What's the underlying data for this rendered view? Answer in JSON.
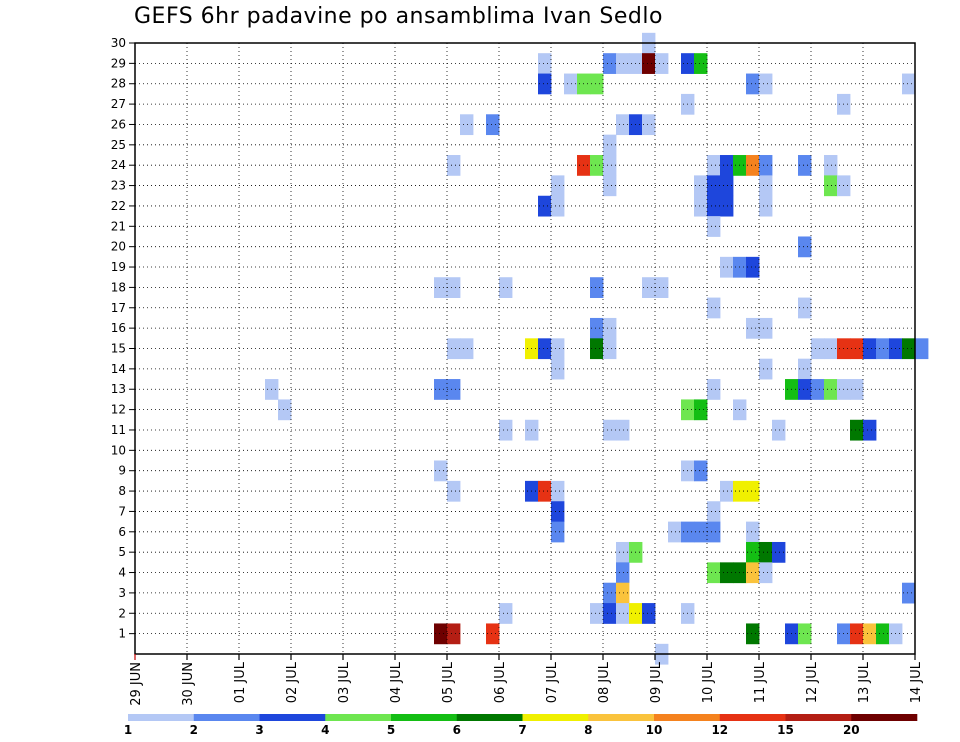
{
  "chart_data": {
    "type": "heatmap",
    "title": "GEFS 6hr padavine po ansamblima Ivan Sedlo",
    "x_tick_labels": [
      "29 JUN",
      "30 JUN",
      "01 JUL",
      "02 JUL",
      "03 JUL",
      "04 JUL",
      "05 JUL",
      "06 JUL",
      "07 JUL",
      "08 JUL",
      "09 JUL",
      "10 JUL",
      "11 JUL",
      "12 JUL",
      "13 JUL",
      "14 JUL"
    ],
    "y_tick_labels": [
      "1",
      "2",
      "3",
      "4",
      "5",
      "6",
      "7",
      "8",
      "9",
      "10",
      "11",
      "12",
      "13",
      "14",
      "15",
      "16",
      "17",
      "18",
      "19",
      "20",
      "21",
      "22",
      "23",
      "24",
      "25",
      "26",
      "27",
      "28",
      "29",
      "30"
    ],
    "ylim": [
      0,
      30
    ],
    "time_steps_per_day": 4,
    "grid": true,
    "legend_position": "bottom",
    "colorbar": {
      "boundaries": [
        "1",
        "2",
        "3",
        "4",
        "5",
        "6",
        "7",
        "8",
        "10",
        "12",
        "15",
        "20"
      ],
      "colors": [
        "#b4c8f5",
        "#5a87ef",
        "#1e46dc",
        "#6ee650",
        "#14be14",
        "#007800",
        "#f0f000",
        "#fac33c",
        "#f5821e",
        "#e63214",
        "#b41e14",
        "#6e0000"
      ]
    },
    "cells": [
      {
        "member": 30,
        "step": 39,
        "level": 0
      },
      {
        "member": 29,
        "step": 31,
        "level": 0
      },
      {
        "member": 29,
        "step": 36,
        "level": 1
      },
      {
        "member": 29,
        "step": 37,
        "level": 0
      },
      {
        "member": 29,
        "step": 38,
        "level": 0
      },
      {
        "member": 29,
        "step": 39,
        "level": 11
      },
      {
        "member": 29,
        "step": 40,
        "level": 0
      },
      {
        "member": 29,
        "step": 42,
        "level": 2
      },
      {
        "member": 29,
        "step": 43,
        "level": 4
      },
      {
        "member": 28,
        "step": 31,
        "level": 2
      },
      {
        "member": 28,
        "step": 33,
        "level": 0
      },
      {
        "member": 28,
        "step": 34,
        "level": 3
      },
      {
        "member": 28,
        "step": 35,
        "level": 3
      },
      {
        "member": 28,
        "step": 47,
        "level": 1
      },
      {
        "member": 28,
        "step": 48,
        "level": 0
      },
      {
        "member": 28,
        "step": 59,
        "level": 0
      },
      {
        "member": 27,
        "step": 42,
        "level": 0
      },
      {
        "member": 27,
        "step": 54,
        "level": 0
      },
      {
        "member": 26,
        "step": 25,
        "level": 0
      },
      {
        "member": 26,
        "step": 27,
        "level": 1
      },
      {
        "member": 26,
        "step": 37,
        "level": 0
      },
      {
        "member": 26,
        "step": 38,
        "level": 2
      },
      {
        "member": 26,
        "step": 39,
        "level": 0
      },
      {
        "member": 25,
        "step": 36,
        "level": 0
      },
      {
        "member": 24,
        "step": 24,
        "level": 0
      },
      {
        "member": 24,
        "step": 34,
        "level": 9
      },
      {
        "member": 24,
        "step": 35,
        "level": 3
      },
      {
        "member": 24,
        "step": 36,
        "level": 0
      },
      {
        "member": 24,
        "step": 44,
        "level": 0
      },
      {
        "member": 24,
        "step": 45,
        "level": 2
      },
      {
        "member": 24,
        "step": 46,
        "level": 4
      },
      {
        "member": 24,
        "step": 47,
        "level": 8
      },
      {
        "member": 24,
        "step": 48,
        "level": 1
      },
      {
        "member": 24,
        "step": 51,
        "level": 1
      },
      {
        "member": 24,
        "step": 53,
        "level": 0
      },
      {
        "member": 23,
        "step": 32,
        "level": 0
      },
      {
        "member": 23,
        "step": 36,
        "level": 0
      },
      {
        "member": 23,
        "step": 43,
        "level": 0
      },
      {
        "member": 23,
        "step": 44,
        "level": 2
      },
      {
        "member": 23,
        "step": 45,
        "level": 2
      },
      {
        "member": 23,
        "step": 48,
        "level": 0
      },
      {
        "member": 23,
        "step": 53,
        "level": 3
      },
      {
        "member": 23,
        "step": 54,
        "level": 0
      },
      {
        "member": 22,
        "step": 31,
        "level": 2
      },
      {
        "member": 22,
        "step": 32,
        "level": 0
      },
      {
        "member": 22,
        "step": 43,
        "level": 0
      },
      {
        "member": 22,
        "step": 44,
        "level": 2
      },
      {
        "member": 22,
        "step": 45,
        "level": 2
      },
      {
        "member": 22,
        "step": 48,
        "level": 0
      },
      {
        "member": 21,
        "step": 44,
        "level": 0
      },
      {
        "member": 20,
        "step": 51,
        "level": 1
      },
      {
        "member": 19,
        "step": 45,
        "level": 0
      },
      {
        "member": 19,
        "step": 46,
        "level": 1
      },
      {
        "member": 19,
        "step": 47,
        "level": 2
      },
      {
        "member": 18,
        "step": 23,
        "level": 0
      },
      {
        "member": 18,
        "step": 24,
        "level": 0
      },
      {
        "member": 18,
        "step": 28,
        "level": 0
      },
      {
        "member": 18,
        "step": 35,
        "level": 1
      },
      {
        "member": 18,
        "step": 39,
        "level": 0
      },
      {
        "member": 18,
        "step": 40,
        "level": 0
      },
      {
        "member": 17,
        "step": 44,
        "level": 0
      },
      {
        "member": 17,
        "step": 51,
        "level": 0
      },
      {
        "member": 16,
        "step": 35,
        "level": 1
      },
      {
        "member": 16,
        "step": 36,
        "level": 0
      },
      {
        "member": 16,
        "step": 47,
        "level": 0
      },
      {
        "member": 16,
        "step": 48,
        "level": 0
      },
      {
        "member": 15,
        "step": 24,
        "level": 0
      },
      {
        "member": 15,
        "step": 25,
        "level": 0
      },
      {
        "member": 15,
        "step": 30,
        "level": 6
      },
      {
        "member": 15,
        "step": 31,
        "level": 2
      },
      {
        "member": 15,
        "step": 32,
        "level": 0
      },
      {
        "member": 15,
        "step": 35,
        "level": 5
      },
      {
        "member": 15,
        "step": 36,
        "level": 0
      },
      {
        "member": 15,
        "step": 52,
        "level": 0
      },
      {
        "member": 15,
        "step": 53,
        "level": 0
      },
      {
        "member": 15,
        "step": 54,
        "level": 9
      },
      {
        "member": 15,
        "step": 55,
        "level": 9
      },
      {
        "member": 15,
        "step": 56,
        "level": 2
      },
      {
        "member": 15,
        "step": 57,
        "level": 1
      },
      {
        "member": 15,
        "step": 58,
        "level": 2
      },
      {
        "member": 15,
        "step": 59,
        "level": 5
      },
      {
        "member": 15,
        "step": 60,
        "level": 1
      },
      {
        "member": 14,
        "step": 32,
        "level": 0
      },
      {
        "member": 14,
        "step": 48,
        "level": 0
      },
      {
        "member": 14,
        "step": 51,
        "level": 0
      },
      {
        "member": 13,
        "step": 10,
        "level": 0
      },
      {
        "member": 13,
        "step": 23,
        "level": 1
      },
      {
        "member": 13,
        "step": 24,
        "level": 1
      },
      {
        "member": 13,
        "step": 44,
        "level": 0
      },
      {
        "member": 13,
        "step": 50,
        "level": 4
      },
      {
        "member": 13,
        "step": 51,
        "level": 2
      },
      {
        "member": 13,
        "step": 52,
        "level": 1
      },
      {
        "member": 13,
        "step": 53,
        "level": 3
      },
      {
        "member": 13,
        "step": 54,
        "level": 0
      },
      {
        "member": 13,
        "step": 55,
        "level": 0
      },
      {
        "member": 12,
        "step": 11,
        "level": 0
      },
      {
        "member": 12,
        "step": 42,
        "level": 3
      },
      {
        "member": 12,
        "step": 43,
        "level": 4
      },
      {
        "member": 12,
        "step": 46,
        "level": 0
      },
      {
        "member": 11,
        "step": 28,
        "level": 0
      },
      {
        "member": 11,
        "step": 30,
        "level": 0
      },
      {
        "member": 11,
        "step": 36,
        "level": 0
      },
      {
        "member": 11,
        "step": 37,
        "level": 0
      },
      {
        "member": 11,
        "step": 49,
        "level": 0
      },
      {
        "member": 11,
        "step": 55,
        "level": 5
      },
      {
        "member": 11,
        "step": 56,
        "level": 2
      },
      {
        "member": 9,
        "step": 23,
        "level": 0
      },
      {
        "member": 9,
        "step": 42,
        "level": 0
      },
      {
        "member": 9,
        "step": 43,
        "level": 1
      },
      {
        "member": 8,
        "step": 24,
        "level": 0
      },
      {
        "member": 8,
        "step": 30,
        "level": 2
      },
      {
        "member": 8,
        "step": 31,
        "level": 9
      },
      {
        "member": 8,
        "step": 32,
        "level": 0
      },
      {
        "member": 8,
        "step": 45,
        "level": 0
      },
      {
        "member": 8,
        "step": 46,
        "level": 6
      },
      {
        "member": 8,
        "step": 47,
        "level": 6
      },
      {
        "member": 7,
        "step": 32,
        "level": 2
      },
      {
        "member": 7,
        "step": 44,
        "level": 0
      },
      {
        "member": 6,
        "step": 32,
        "level": 1
      },
      {
        "member": 6,
        "step": 41,
        "level": 0
      },
      {
        "member": 6,
        "step": 42,
        "level": 1
      },
      {
        "member": 6,
        "step": 43,
        "level": 1
      },
      {
        "member": 6,
        "step": 44,
        "level": 1
      },
      {
        "member": 6,
        "step": 47,
        "level": 0
      },
      {
        "member": 5,
        "step": 37,
        "level": 0
      },
      {
        "member": 5,
        "step": 38,
        "level": 3
      },
      {
        "member": 5,
        "step": 47,
        "level": 4
      },
      {
        "member": 5,
        "step": 48,
        "level": 5
      },
      {
        "member": 5,
        "step": 49,
        "level": 2
      },
      {
        "member": 4,
        "step": 37,
        "level": 1
      },
      {
        "member": 4,
        "step": 44,
        "level": 3
      },
      {
        "member": 4,
        "step": 45,
        "level": 5
      },
      {
        "member": 4,
        "step": 46,
        "level": 5
      },
      {
        "member": 4,
        "step": 47,
        "level": 7
      },
      {
        "member": 4,
        "step": 48,
        "level": 0
      },
      {
        "member": 3,
        "step": 36,
        "level": 1
      },
      {
        "member": 3,
        "step": 37,
        "level": 7
      },
      {
        "member": 3,
        "step": 59,
        "level": 1
      },
      {
        "member": 2,
        "step": 28,
        "level": 0
      },
      {
        "member": 2,
        "step": 35,
        "level": 0
      },
      {
        "member": 2,
        "step": 36,
        "level": 2
      },
      {
        "member": 2,
        "step": 37,
        "level": 0
      },
      {
        "member": 2,
        "step": 38,
        "level": 6
      },
      {
        "member": 2,
        "step": 39,
        "level": 2
      },
      {
        "member": 2,
        "step": 42,
        "level": 0
      },
      {
        "member": 1,
        "step": 23,
        "level": 11
      },
      {
        "member": 1,
        "step": 24,
        "level": 10
      },
      {
        "member": 1,
        "step": 27,
        "level": 9
      },
      {
        "member": 1,
        "step": 47,
        "level": 5
      },
      {
        "member": 1,
        "step": 50,
        "level": 2
      },
      {
        "member": 1,
        "step": 51,
        "level": 3
      },
      {
        "member": 1,
        "step": 54,
        "level": 1
      },
      {
        "member": 1,
        "step": 55,
        "level": 9
      },
      {
        "member": 1,
        "step": 56,
        "level": 7
      },
      {
        "member": 1,
        "step": 57,
        "level": 4
      },
      {
        "member": 1,
        "step": 58,
        "level": 0
      },
      {
        "member": 0,
        "step": 40,
        "level": 0
      }
    ]
  }
}
